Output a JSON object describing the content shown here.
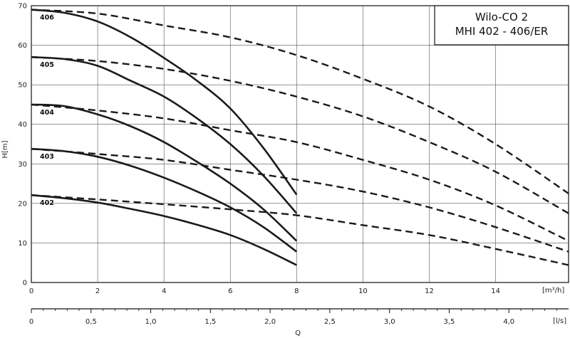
{
  "chart_data": {
    "type": "line",
    "title": [
      "Wilo-CO 2",
      "MHI 402 - 406/ER"
    ],
    "xlabel": "Q",
    "ylabel": "H[m]",
    "x_unit_primary": "[m³/h]",
    "x_unit_secondary": "[l/s]",
    "xlim": [
      0,
      16.2
    ],
    "ylim": [
      0,
      70
    ],
    "x_ticks": [
      0,
      2,
      4,
      6,
      8,
      10,
      12,
      14
    ],
    "y_ticks": [
      0,
      10,
      20,
      30,
      40,
      50,
      60,
      70
    ],
    "x2_ticks": [
      "0",
      "0,5",
      "1,0",
      "1,5",
      "2,0",
      "2,5",
      "3,0",
      "3,5",
      "4,0"
    ],
    "x2_values": [
      0,
      0.5,
      1.0,
      1.5,
      2.0,
      2.5,
      3.0,
      3.5,
      4.0
    ],
    "grid": true,
    "series": [
      {
        "name": "406",
        "style": "solid",
        "x": [
          0,
          1,
          2,
          3,
          4,
          5,
          6,
          7,
          8
        ],
        "values": [
          69,
          68.2,
          66,
          62,
          56.8,
          51,
          44,
          34,
          22.2
        ]
      },
      {
        "name": "405",
        "style": "solid",
        "x": [
          0,
          1,
          2,
          3,
          4,
          5,
          6,
          7,
          8
        ],
        "values": [
          57,
          56.5,
          54.8,
          51,
          47,
          41.5,
          35,
          27,
          17.5
        ]
      },
      {
        "name": "404",
        "style": "solid",
        "x": [
          0,
          1,
          2,
          3,
          4,
          5,
          6,
          7,
          8
        ],
        "values": [
          45,
          44.6,
          42.5,
          39.5,
          35.5,
          30.5,
          25,
          18.5,
          10.5
        ]
      },
      {
        "name": "403",
        "style": "solid",
        "x": [
          0,
          1,
          2,
          3,
          4,
          5,
          6,
          7,
          8
        ],
        "values": [
          33.8,
          33.2,
          31.8,
          29.5,
          26.5,
          23,
          19,
          14,
          7.8
        ]
      },
      {
        "name": "402",
        "style": "solid",
        "x": [
          0,
          1,
          2,
          3,
          4,
          5,
          6,
          7,
          8
        ],
        "values": [
          22.1,
          21.3,
          20.2,
          18.6,
          16.8,
          14.6,
          12,
          8.5,
          4.4
        ]
      },
      {
        "name": "",
        "style": "dashed",
        "x": [
          0,
          2,
          4,
          6,
          8,
          10,
          12,
          14,
          16.2
        ],
        "values": [
          69,
          68,
          65,
          62,
          57.5,
          51.5,
          44.5,
          35,
          22.5
        ]
      },
      {
        "name": "",
        "style": "dashed",
        "x": [
          0,
          2,
          4,
          6,
          8,
          10,
          12,
          14,
          16.2
        ],
        "values": [
          57,
          56,
          54,
          51,
          47,
          42,
          35.5,
          28,
          17.5
        ]
      },
      {
        "name": "",
        "style": "dashed",
        "x": [
          0,
          2,
          4,
          6,
          8,
          10,
          12,
          14,
          16.2
        ],
        "values": [
          45,
          43.5,
          41.5,
          38.5,
          35.5,
          31,
          26,
          19.5,
          10.5
        ]
      },
      {
        "name": "",
        "style": "dashed",
        "x": [
          0,
          2,
          4,
          6,
          8,
          10,
          12,
          14,
          16.2
        ],
        "values": [
          33.8,
          32.5,
          31,
          28.5,
          26,
          23,
          19,
          14,
          7.8
        ]
      },
      {
        "name": "",
        "style": "dashed",
        "x": [
          0,
          2,
          4,
          6,
          8,
          10,
          12,
          14,
          16.2
        ],
        "values": [
          22.1,
          21,
          19.8,
          18.5,
          17,
          14.5,
          12,
          8.5,
          4.4
        ]
      }
    ]
  }
}
